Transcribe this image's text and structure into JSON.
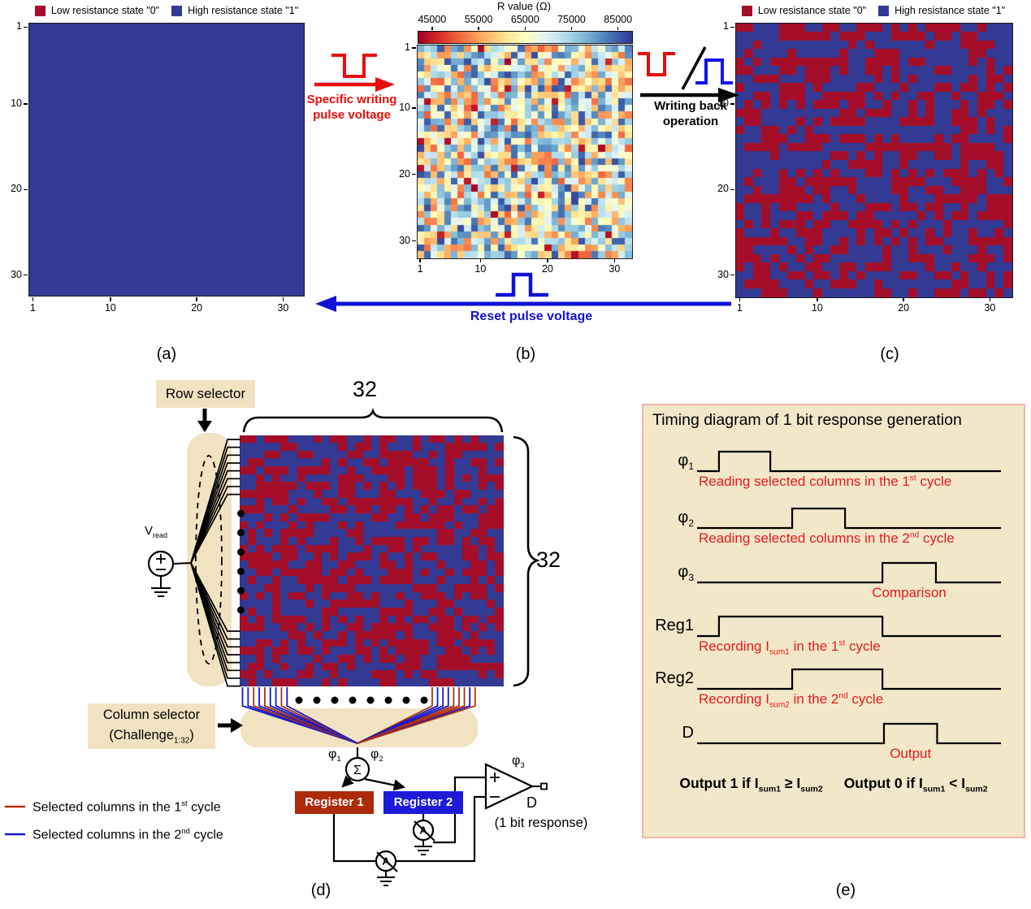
{
  "page": {
    "panel_labels": {
      "a": "(a)",
      "b": "(b)",
      "c": "(c)",
      "d": "(d)",
      "e": "(e)"
    }
  },
  "state_legend": {
    "low": "Low resistance state \"0\"",
    "high": "High resistance state \"1\""
  },
  "colors": {
    "cell_red": "#a50e28",
    "cell_blue": "#333a94",
    "accent_red": "#e90d0d",
    "accent_blue": "#1111d6",
    "annotation_red": "#e8191c",
    "tan": "#f1e3c2",
    "register1_bg": "#ad2a0a",
    "register2_bg": "#1d1ad8",
    "line_red": "#b03010",
    "line_blue": "#1818c8"
  },
  "panels": {
    "a": {
      "axis_ticks": [
        1,
        10,
        20,
        30
      ],
      "grid": {
        "kind": "solid",
        "rows": 32,
        "cols": 32
      }
    },
    "b": {
      "colorbar_title": "R value (Ω)",
      "colorbar_ticks": [
        "45000",
        "55000",
        "65000",
        "75000",
        "85000"
      ],
      "axis_ticks": [
        1,
        10,
        20,
        30
      ],
      "grid": {
        "kind": "heatmap",
        "rows": 32,
        "cols": 32,
        "seed": 101,
        "value_range": [
          45000,
          85000
        ]
      }
    },
    "c": {
      "axis_ticks": [
        1,
        10,
        20,
        30
      ],
      "grid": {
        "kind": "binary",
        "rows": 32,
        "cols": 32,
        "seed": 7
      }
    },
    "d": {
      "row_selector_label": "Row selector",
      "column_selector_line1": "Column selector",
      "column_selector_line2": "(Challenge_{1:32})",
      "vread_label": "V_{read}",
      "dim_top": "32",
      "dim_right": "32",
      "phi1": "φ_{1}",
      "phi2": "φ_{2}",
      "phi3": "φ_{3}",
      "sigma": "Σ",
      "ammeter_label": "A",
      "register1_label": "Register 1",
      "register2_label": "Register 2",
      "output_label": "D",
      "output_caption": "(1 bit response)",
      "legend": [
        {
          "label": "Selected columns in the 1^{st} cycle",
          "color": "#b03010"
        },
        {
          "label": "Selected columns in the 2^{nd} cycle",
          "color": "#1818c8"
        }
      ],
      "grid": {
        "kind": "binary",
        "rows": 32,
        "cols": 32,
        "seed": 23
      },
      "fan": {
        "row_lines": 16,
        "col_lines": 18,
        "color_seed": 5
      }
    },
    "e": {
      "title": "Timing diagram of 1 bit response generation",
      "signals": [
        {
          "name": "φ_{1}",
          "rise": 0.072,
          "fall": 0.241,
          "annotation": "Reading selected columns in the 1^{st} cycle",
          "ann_mode": "left"
        },
        {
          "name": "φ_{2}",
          "rise": 0.313,
          "fall": 0.487,
          "annotation": "Reading selected columns in the 2^{nd} cycle",
          "ann_mode": "left"
        },
        {
          "name": "φ_{3}",
          "rise": 0.61,
          "fall": 0.786,
          "annotation": "Comparison",
          "ann_mode": "pulse"
        },
        {
          "name": "Reg1",
          "rise": 0.072,
          "fall": 0.61,
          "annotation": "Recording I_{sum1} in the 1^{st} cycle",
          "ann_mode": "left"
        },
        {
          "name": "Reg2",
          "rise": 0.313,
          "fall": 0.61,
          "annotation": "Recording I_{sum2} in the 2^{nd} cycle",
          "ann_mode": "left"
        },
        {
          "name": "D",
          "rise": 0.615,
          "fall": 0.79,
          "annotation": "Output",
          "ann_mode": "pulse"
        }
      ],
      "footer_left": "Output 1 if I_{sum1} ≥ I_{sum2}",
      "footer_right": "Output 0 if I_{sum1} < I_{sum2}"
    }
  },
  "arrows": {
    "write_label_line1": "Specific writing",
    "write_label_line2": "pulse voltage",
    "writeback_label_line1": "Writing back",
    "writeback_label_line2": "operation",
    "reset_label": "Reset pulse voltage"
  }
}
